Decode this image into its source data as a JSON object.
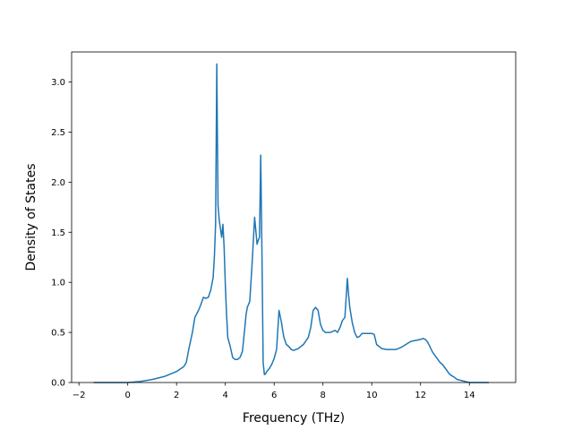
{
  "chart_data": {
    "type": "line",
    "title": "",
    "xlabel": "Frequency (THz)",
    "ylabel": "Density of States",
    "xlim": [
      -2.3,
      15.9
    ],
    "ylim": [
      0.0,
      3.3
    ],
    "x_ticks": [
      -2,
      0,
      2,
      4,
      6,
      8,
      10,
      12,
      14
    ],
    "x_tick_labels": [
      "−2",
      "0",
      "2",
      "4",
      "6",
      "8",
      "10",
      "12",
      "14"
    ],
    "y_ticks": [
      0.0,
      0.5,
      1.0,
      1.5,
      2.0,
      2.5,
      3.0
    ],
    "y_tick_labels": [
      "0.0",
      "0.5",
      "1.0",
      "1.5",
      "2.0",
      "2.5",
      "3.0"
    ],
    "grid": false,
    "legend": "none",
    "series": [
      {
        "color": "#1f77b4",
        "x": [
          -1.4,
          -0.5,
          0.0,
          0.5,
          1.0,
          1.5,
          2.0,
          2.3,
          2.4,
          2.5,
          2.65,
          2.75,
          2.9,
          3.0,
          3.1,
          3.2,
          3.3,
          3.4,
          3.5,
          3.55,
          3.6,
          3.65,
          3.7,
          3.75,
          3.85,
          3.9,
          3.95,
          4.0,
          4.05,
          4.1,
          4.2,
          4.3,
          4.4,
          4.5,
          4.6,
          4.7,
          4.8,
          4.85,
          4.9,
          5.0,
          5.1,
          5.2,
          5.3,
          5.35,
          5.4,
          5.45,
          5.5,
          5.55,
          5.6,
          5.63,
          5.7,
          5.8,
          5.9,
          6.0,
          6.1,
          6.2,
          6.3,
          6.35,
          6.4,
          6.5,
          6.6,
          6.7,
          6.8,
          6.9,
          7.0,
          7.2,
          7.4,
          7.5,
          7.6,
          7.7,
          7.8,
          7.9,
          8.0,
          8.1,
          8.2,
          8.3,
          8.5,
          8.6,
          8.7,
          8.8,
          8.9,
          9.0,
          9.05,
          9.1,
          9.2,
          9.3,
          9.4,
          9.5,
          9.6,
          9.8,
          10.0,
          10.1,
          10.2,
          10.4,
          10.6,
          10.8,
          11.0,
          11.2,
          11.4,
          11.6,
          12.0,
          12.1,
          12.2,
          12.3,
          12.5,
          12.8,
          12.9,
          13.2,
          13.4,
          13.5,
          14.0,
          14.8
        ],
        "values": [
          0.0,
          0.0,
          0.0,
          0.01,
          0.03,
          0.06,
          0.11,
          0.16,
          0.2,
          0.33,
          0.5,
          0.65,
          0.72,
          0.78,
          0.85,
          0.84,
          0.85,
          0.92,
          1.05,
          1.25,
          1.58,
          3.18,
          1.77,
          1.62,
          1.45,
          1.58,
          1.35,
          0.97,
          0.68,
          0.45,
          0.36,
          0.25,
          0.23,
          0.23,
          0.25,
          0.31,
          0.55,
          0.68,
          0.75,
          0.81,
          1.2,
          1.65,
          1.38,
          1.42,
          1.45,
          2.27,
          1.3,
          0.2,
          0.08,
          0.08,
          0.11,
          0.14,
          0.18,
          0.24,
          0.33,
          0.72,
          0.6,
          0.52,
          0.45,
          0.38,
          0.36,
          0.33,
          0.32,
          0.33,
          0.34,
          0.38,
          0.45,
          0.55,
          0.72,
          0.75,
          0.72,
          0.58,
          0.52,
          0.5,
          0.5,
          0.5,
          0.52,
          0.5,
          0.55,
          0.62,
          0.65,
          1.04,
          0.88,
          0.75,
          0.6,
          0.5,
          0.45,
          0.46,
          0.49,
          0.49,
          0.49,
          0.48,
          0.38,
          0.34,
          0.33,
          0.33,
          0.33,
          0.35,
          0.38,
          0.41,
          0.43,
          0.44,
          0.43,
          0.4,
          0.3,
          0.2,
          0.18,
          0.08,
          0.05,
          0.03,
          0.0,
          0.0
        ]
      }
    ]
  }
}
